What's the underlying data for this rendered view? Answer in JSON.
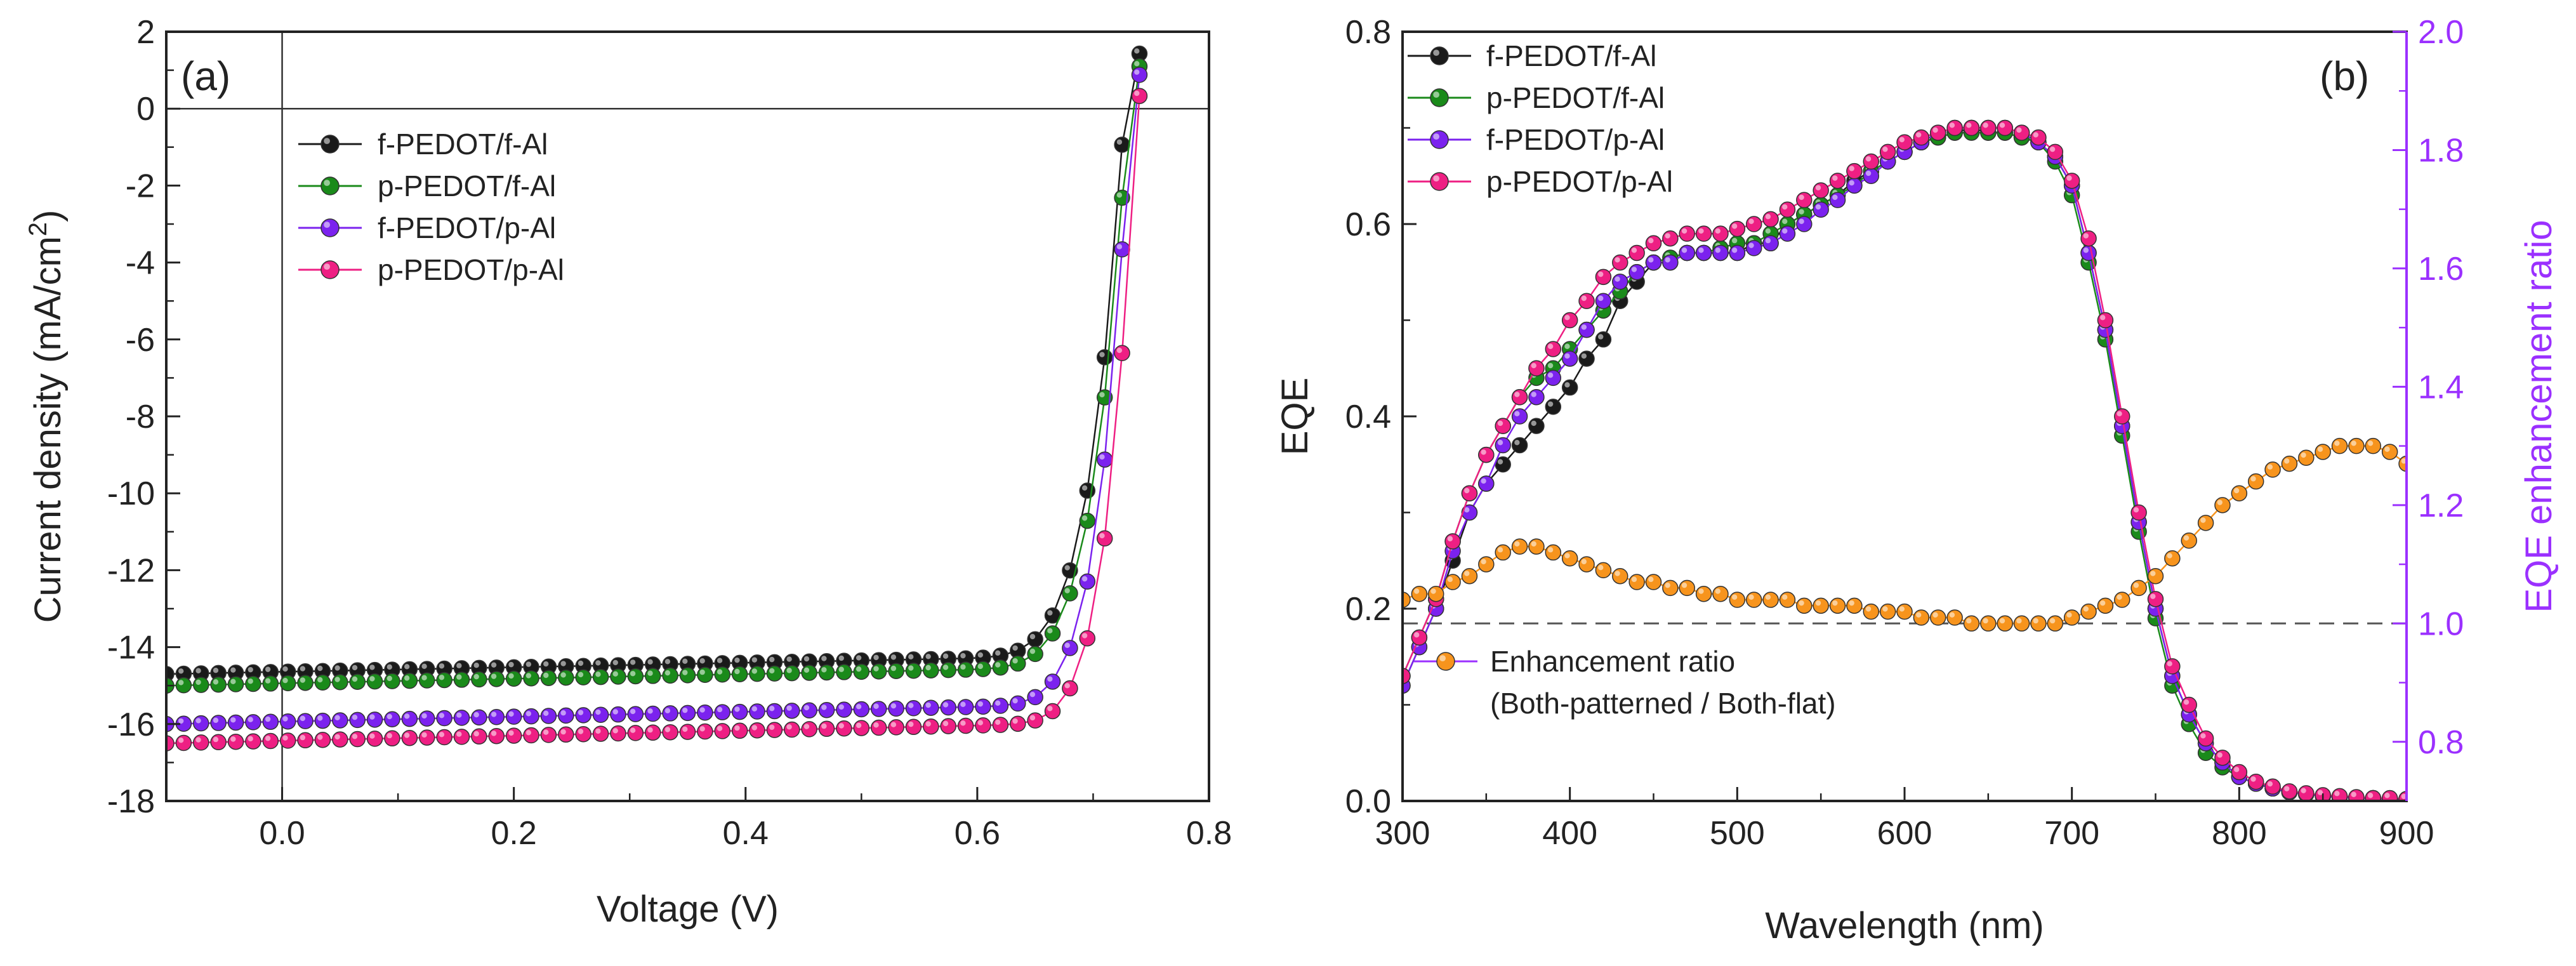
{
  "colors": {
    "black": "#1a1a1a",
    "green": "#1a8a1a",
    "purple": "#7b22ee",
    "pink": "#ee1f83",
    "orange": "#f7941d",
    "violet_axis": "#9b30ff"
  },
  "chart_data": [
    {
      "type": "line",
      "panel_label": "(a)",
      "xlabel": "Voltage (V)",
      "ylabel": "Current density (mA/cm",
      "ylabel_superscript": "2",
      "ylabel_close": ")",
      "xlim": [
        -0.1,
        0.8
      ],
      "ylim": [
        -18,
        2
      ],
      "xticks": [
        0.0,
        0.2,
        0.4,
        0.6,
        0.8
      ],
      "xtick_labels": [
        "0.0",
        "0.2",
        "0.4",
        "0.6",
        "0.8"
      ],
      "yticks": [
        2,
        0,
        -2,
        -4,
        -6,
        -8,
        -10,
        -12,
        -14,
        -16,
        -18
      ],
      "ytick_labels": [
        "2",
        "0",
        "-2",
        "-4",
        "-6",
        "-8",
        "-10",
        "-12",
        "-14",
        "-16",
        "-18"
      ],
      "legend_position": "top-left",
      "series": [
        {
          "name": "f-PEDOT/f-Al",
          "color": "black",
          "jsc": -14.7,
          "voc": 0.727,
          "knee": 0.55,
          "slope": 2.0
        },
        {
          "name": "p-PEDOT/f-Al",
          "color": "green",
          "jsc": -15.0,
          "voc": 0.73,
          "knee": 0.555,
          "slope": 2.0
        },
        {
          "name": "f-PEDOT/p-Al",
          "color": "purple",
          "jsc": -16.0,
          "voc": 0.732,
          "knee": 0.565,
          "slope": 2.1
        },
        {
          "name": "p-PEDOT/p-Al",
          "color": "pink",
          "jsc": -16.5,
          "voc": 0.737,
          "knee": 0.575,
          "slope": 2.2
        }
      ]
    },
    {
      "type": "line",
      "panel_label": "(b)",
      "xlabel": "Wavelength (nm)",
      "ylabel": "EQE",
      "y2label": "EQE enhancement ratio",
      "xlim": [
        300,
        900
      ],
      "ylim": [
        0.0,
        0.8
      ],
      "y2lim": [
        0.7,
        2.0
      ],
      "xticks": [
        300,
        400,
        500,
        600,
        700,
        800,
        900
      ],
      "xtick_labels": [
        "300",
        "400",
        "500",
        "600",
        "700",
        "800",
        "900"
      ],
      "yticks": [
        0.0,
        0.2,
        0.4,
        0.6,
        0.8
      ],
      "ytick_labels": [
        "0.0",
        "0.2",
        "0.4",
        "0.6",
        "0.8"
      ],
      "y2ticks": [
        0.8,
        1.0,
        1.2,
        1.4,
        1.6,
        1.8,
        2.0
      ],
      "y2tick_labels": [
        "0.8",
        "1.0",
        "1.2",
        "1.4",
        "1.6",
        "1.8",
        "2.0"
      ],
      "reference_line_y2": 1.0,
      "legend_position": "top-left",
      "x": [
        300,
        310,
        320,
        330,
        340,
        350,
        360,
        370,
        380,
        390,
        400,
        410,
        420,
        430,
        440,
        450,
        460,
        470,
        480,
        490,
        500,
        510,
        520,
        530,
        540,
        550,
        560,
        570,
        580,
        590,
        600,
        610,
        620,
        630,
        640,
        650,
        660,
        670,
        680,
        690,
        700,
        710,
        720,
        730,
        740,
        750,
        760,
        770,
        780,
        790,
        800,
        810,
        820,
        830,
        840,
        850,
        860,
        870,
        880,
        890,
        900
      ],
      "series": [
        {
          "name": "f-PEDOT/f-Al",
          "color": "black",
          "axis": "left",
          "values": [
            0.12,
            0.16,
            0.2,
            0.25,
            0.3,
            0.33,
            0.35,
            0.37,
            0.39,
            0.41,
            0.43,
            0.46,
            0.48,
            0.52,
            0.54,
            0.56,
            0.56,
            0.57,
            0.57,
            0.57,
            0.57,
            0.58,
            0.58,
            0.6,
            0.61,
            0.62,
            0.63,
            0.645,
            0.655,
            0.665,
            0.675,
            0.685,
            0.69,
            0.695,
            0.7,
            0.695,
            0.695,
            0.69,
            0.685,
            0.67,
            0.64,
            0.57,
            0.49,
            0.39,
            0.29,
            0.2,
            0.13,
            0.09,
            0.06,
            0.04,
            0.025,
            0.018,
            0.013,
            0.009,
            0.007,
            0.005,
            0.004,
            0.003,
            0.003,
            0.002,
            0.002
          ]
        },
        {
          "name": "p-PEDOT/f-Al",
          "color": "green",
          "axis": "left",
          "values": [
            0.13,
            0.17,
            0.21,
            0.27,
            0.32,
            0.36,
            0.39,
            0.42,
            0.44,
            0.45,
            0.47,
            0.49,
            0.51,
            0.53,
            0.55,
            0.56,
            0.565,
            0.57,
            0.57,
            0.575,
            0.58,
            0.58,
            0.59,
            0.6,
            0.61,
            0.62,
            0.63,
            0.64,
            0.655,
            0.665,
            0.675,
            0.685,
            0.69,
            0.695,
            0.695,
            0.695,
            0.695,
            0.69,
            0.685,
            0.665,
            0.63,
            0.56,
            0.48,
            0.38,
            0.28,
            0.19,
            0.12,
            0.08,
            0.05,
            0.035,
            0.025,
            0.018,
            0.013,
            0.009,
            0.007,
            0.005,
            0.004,
            0.003,
            0.003,
            0.002,
            0.002
          ]
        },
        {
          "name": "f-PEDOT/p-Al",
          "color": "purple",
          "axis": "left",
          "values": [
            0.12,
            0.16,
            0.2,
            0.26,
            0.3,
            0.33,
            0.37,
            0.4,
            0.42,
            0.44,
            0.46,
            0.49,
            0.52,
            0.54,
            0.55,
            0.56,
            0.56,
            0.57,
            0.57,
            0.57,
            0.57,
            0.575,
            0.58,
            0.59,
            0.6,
            0.615,
            0.625,
            0.64,
            0.65,
            0.665,
            0.675,
            0.685,
            0.695,
            0.7,
            0.7,
            0.7,
            0.7,
            0.695,
            0.685,
            0.67,
            0.64,
            0.57,
            0.49,
            0.39,
            0.29,
            0.2,
            0.13,
            0.09,
            0.06,
            0.04,
            0.025,
            0.018,
            0.013,
            0.009,
            0.007,
            0.005,
            0.004,
            0.003,
            0.003,
            0.002,
            0.002
          ]
        },
        {
          "name": "p-PEDOT/p-Al",
          "color": "pink",
          "axis": "left",
          "values": [
            0.13,
            0.17,
            0.21,
            0.27,
            0.32,
            0.36,
            0.39,
            0.42,
            0.45,
            0.47,
            0.5,
            0.52,
            0.545,
            0.56,
            0.57,
            0.58,
            0.585,
            0.59,
            0.59,
            0.59,
            0.595,
            0.6,
            0.605,
            0.615,
            0.625,
            0.635,
            0.645,
            0.655,
            0.665,
            0.675,
            0.685,
            0.69,
            0.695,
            0.7,
            0.7,
            0.7,
            0.7,
            0.695,
            0.69,
            0.675,
            0.645,
            0.585,
            0.5,
            0.4,
            0.3,
            0.21,
            0.14,
            0.1,
            0.065,
            0.045,
            0.03,
            0.02,
            0.015,
            0.01,
            0.008,
            0.006,
            0.005,
            0.004,
            0.003,
            0.003,
            0.002
          ]
        },
        {
          "name": "Enhancement ratio",
          "name_line2": "(Both-patterned / Both-flat)",
          "color": "orange",
          "axis": "right",
          "values": [
            1.04,
            1.05,
            1.05,
            1.07,
            1.08,
            1.1,
            1.12,
            1.13,
            1.13,
            1.12,
            1.11,
            1.1,
            1.09,
            1.08,
            1.07,
            1.07,
            1.06,
            1.06,
            1.05,
            1.05,
            1.04,
            1.04,
            1.04,
            1.04,
            1.03,
            1.03,
            1.03,
            1.03,
            1.02,
            1.02,
            1.02,
            1.01,
            1.01,
            1.01,
            1.0,
            1.0,
            1.0,
            1.0,
            1.0,
            1.0,
            1.01,
            1.02,
            1.03,
            1.04,
            1.06,
            1.08,
            1.11,
            1.14,
            1.17,
            1.2,
            1.22,
            1.24,
            1.26,
            1.27,
            1.28,
            1.29,
            1.3,
            1.3,
            1.3,
            1.29,
            1.27
          ]
        }
      ]
    }
  ]
}
